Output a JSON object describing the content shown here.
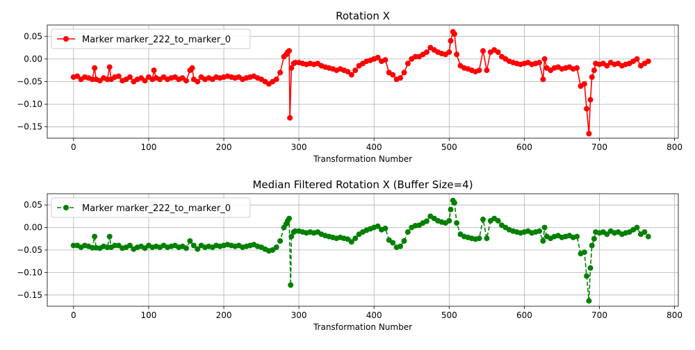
{
  "chart_data": [
    {
      "type": "line",
      "title": "Rotation X",
      "xlabel": "Transformation Number",
      "ylabel": "",
      "xlim": [
        -35,
        805
      ],
      "ylim": [
        -0.175,
        0.075
      ],
      "xticks": [
        0,
        100,
        200,
        300,
        400,
        500,
        600,
        700,
        800
      ],
      "yticks": [
        0.05,
        0.0,
        -0.05,
        -0.1,
        -0.15
      ],
      "ytick_labels": [
        "0.05",
        "0.00",
        "−0.05",
        "−0.10",
        "−0.15"
      ],
      "grid": true,
      "legend_position": "top-left",
      "series": [
        {
          "name": "Marker marker_222_to_marker_0",
          "color": "#ff0000",
          "line_style": "solid",
          "marker": "circle",
          "x": [
            0,
            5,
            10,
            15,
            20,
            25,
            28,
            30,
            35,
            40,
            45,
            48,
            50,
            55,
            60,
            65,
            70,
            75,
            80,
            85,
            90,
            95,
            100,
            105,
            107,
            110,
            115,
            120,
            125,
            130,
            135,
            140,
            145,
            150,
            155,
            158,
            160,
            165,
            170,
            175,
            180,
            185,
            190,
            195,
            200,
            205,
            210,
            215,
            220,
            225,
            230,
            235,
            240,
            245,
            250,
            255,
            260,
            265,
            270,
            275,
            280,
            283,
            285,
            287,
            288,
            290,
            293,
            295,
            300,
            305,
            310,
            315,
            320,
            325,
            330,
            335,
            340,
            345,
            350,
            355,
            360,
            365,
            370,
            375,
            380,
            385,
            390,
            395,
            400,
            405,
            410,
            415,
            420,
            425,
            430,
            435,
            440,
            445,
            450,
            455,
            460,
            465,
            470,
            475,
            480,
            485,
            490,
            495,
            500,
            502,
            505,
            507,
            510,
            515,
            520,
            525,
            530,
            535,
            540,
            545,
            550,
            555,
            560,
            565,
            570,
            575,
            580,
            585,
            590,
            595,
            600,
            605,
            610,
            615,
            620,
            625,
            627,
            630,
            635,
            640,
            645,
            650,
            655,
            660,
            665,
            670,
            675,
            680,
            683,
            686,
            688,
            690,
            693,
            695,
            700,
            705,
            710,
            715,
            720,
            725,
            730,
            735,
            740,
            745,
            750,
            755,
            760,
            765
          ],
          "y": [
            -0.04,
            -0.038,
            -0.045,
            -0.04,
            -0.042,
            -0.045,
            -0.02,
            -0.045,
            -0.048,
            -0.042,
            -0.045,
            -0.018,
            -0.045,
            -0.04,
            -0.038,
            -0.048,
            -0.045,
            -0.04,
            -0.05,
            -0.045,
            -0.042,
            -0.048,
            -0.04,
            -0.045,
            -0.025,
            -0.042,
            -0.045,
            -0.04,
            -0.045,
            -0.042,
            -0.04,
            -0.045,
            -0.042,
            -0.048,
            -0.025,
            -0.02,
            -0.045,
            -0.05,
            -0.04,
            -0.045,
            -0.042,
            -0.045,
            -0.04,
            -0.042,
            -0.04,
            -0.038,
            -0.04,
            -0.042,
            -0.04,
            -0.045,
            -0.042,
            -0.04,
            -0.038,
            -0.042,
            -0.045,
            -0.05,
            -0.055,
            -0.05,
            -0.045,
            -0.03,
            0.005,
            0.01,
            0.015,
            0.018,
            -0.13,
            -0.02,
            -0.01,
            -0.008,
            -0.008,
            -0.01,
            -0.012,
            -0.01,
            -0.012,
            -0.01,
            -0.015,
            -0.018,
            -0.02,
            -0.022,
            -0.025,
            -0.022,
            -0.025,
            -0.028,
            -0.035,
            -0.025,
            -0.015,
            -0.01,
            -0.005,
            -0.003,
            0.0,
            0.003,
            -0.005,
            -0.002,
            -0.03,
            -0.035,
            -0.045,
            -0.042,
            -0.03,
            -0.01,
            0.0,
            0.005,
            0.005,
            0.01,
            0.015,
            0.025,
            0.02,
            0.015,
            0.012,
            0.01,
            0.015,
            0.04,
            0.06,
            0.055,
            0.01,
            -0.015,
            -0.02,
            -0.022,
            -0.025,
            -0.028,
            -0.025,
            0.018,
            -0.025,
            0.015,
            0.02,
            0.015,
            0.005,
            0.0,
            -0.005,
            -0.008,
            -0.01,
            -0.012,
            -0.01,
            -0.008,
            -0.012,
            -0.01,
            -0.008,
            -0.045,
            0.0,
            -0.02,
            -0.025,
            -0.02,
            -0.018,
            -0.022,
            -0.02,
            -0.018,
            -0.022,
            -0.02,
            -0.06,
            -0.055,
            -0.11,
            -0.165,
            -0.09,
            -0.04,
            -0.025,
            -0.01,
            -0.012,
            -0.01,
            -0.015,
            -0.008,
            -0.012,
            -0.01,
            -0.015,
            -0.012,
            -0.01,
            -0.005,
            0.0,
            -0.015,
            -0.01,
            -0.005
          ]
        }
      ]
    },
    {
      "type": "line",
      "title": "Median Filtered Rotation X (Buffer Size=4)",
      "xlabel": "Transformation Number",
      "ylabel": "",
      "xlim": [
        -35,
        805
      ],
      "ylim": [
        -0.175,
        0.075
      ],
      "xticks": [
        0,
        100,
        200,
        300,
        400,
        500,
        600,
        700,
        800
      ],
      "yticks": [
        0.05,
        0.0,
        -0.05,
        -0.1,
        -0.15
      ],
      "ytick_labels": [
        "0.05",
        "0.00",
        "−0.05",
        "−0.10",
        "−0.15"
      ],
      "grid": true,
      "legend_position": "top-left",
      "series": [
        {
          "name": "Marker marker_222_to_marker_0",
          "color": "#008000",
          "line_style": "dashed",
          "marker": "circle",
          "x": [
            0,
            5,
            10,
            15,
            20,
            25,
            28,
            30,
            35,
            40,
            45,
            48,
            50,
            55,
            60,
            65,
            70,
            75,
            80,
            85,
            90,
            95,
            100,
            105,
            110,
            115,
            120,
            125,
            130,
            135,
            140,
            145,
            150,
            155,
            160,
            165,
            170,
            175,
            180,
            185,
            190,
            195,
            200,
            205,
            210,
            215,
            220,
            225,
            230,
            235,
            240,
            245,
            250,
            255,
            260,
            265,
            270,
            275,
            280,
            283,
            285,
            287,
            289,
            290,
            293,
            295,
            300,
            305,
            310,
            315,
            320,
            325,
            330,
            335,
            340,
            345,
            350,
            355,
            360,
            365,
            370,
            375,
            380,
            385,
            390,
            395,
            400,
            405,
            410,
            415,
            420,
            425,
            430,
            435,
            440,
            445,
            450,
            455,
            460,
            465,
            470,
            475,
            480,
            485,
            490,
            495,
            500,
            502,
            505,
            507,
            510,
            515,
            520,
            525,
            530,
            535,
            540,
            545,
            550,
            555,
            560,
            565,
            570,
            575,
            580,
            585,
            590,
            595,
            600,
            605,
            610,
            615,
            620,
            625,
            627,
            630,
            635,
            640,
            645,
            650,
            655,
            660,
            665,
            670,
            675,
            680,
            683,
            686,
            688,
            690,
            693,
            695,
            700,
            705,
            710,
            715,
            720,
            725,
            730,
            735,
            740,
            745,
            750,
            755,
            760,
            765
          ],
          "y": [
            -0.04,
            -0.04,
            -0.044,
            -0.04,
            -0.042,
            -0.045,
            -0.02,
            -0.045,
            -0.046,
            -0.042,
            -0.044,
            -0.02,
            -0.044,
            -0.04,
            -0.04,
            -0.046,
            -0.044,
            -0.04,
            -0.048,
            -0.044,
            -0.042,
            -0.046,
            -0.04,
            -0.044,
            -0.042,
            -0.044,
            -0.04,
            -0.044,
            -0.042,
            -0.04,
            -0.044,
            -0.042,
            -0.046,
            -0.03,
            -0.04,
            -0.048,
            -0.04,
            -0.044,
            -0.042,
            -0.044,
            -0.04,
            -0.042,
            -0.04,
            -0.038,
            -0.04,
            -0.042,
            -0.04,
            -0.044,
            -0.042,
            -0.04,
            -0.038,
            -0.042,
            -0.044,
            -0.048,
            -0.052,
            -0.05,
            -0.044,
            -0.03,
            0.0,
            0.008,
            0.015,
            0.02,
            -0.128,
            -0.02,
            -0.01,
            -0.008,
            -0.008,
            -0.01,
            -0.012,
            -0.01,
            -0.012,
            -0.01,
            -0.015,
            -0.018,
            -0.02,
            -0.022,
            -0.024,
            -0.022,
            -0.024,
            -0.026,
            -0.032,
            -0.024,
            -0.015,
            -0.01,
            -0.006,
            -0.003,
            0.0,
            0.003,
            -0.005,
            -0.002,
            -0.028,
            -0.034,
            -0.044,
            -0.042,
            -0.03,
            -0.01,
            0.0,
            0.004,
            0.005,
            0.01,
            0.014,
            0.025,
            0.02,
            0.015,
            0.012,
            0.01,
            0.015,
            0.04,
            0.06,
            0.055,
            0.01,
            -0.015,
            -0.02,
            -0.022,
            -0.024,
            -0.026,
            -0.024,
            0.018,
            -0.024,
            0.015,
            0.02,
            0.015,
            0.005,
            0.0,
            -0.005,
            -0.008,
            -0.01,
            -0.012,
            -0.01,
            -0.008,
            -0.012,
            -0.01,
            -0.008,
            -0.03,
            0.0,
            -0.02,
            -0.024,
            -0.02,
            -0.018,
            -0.022,
            -0.02,
            -0.018,
            -0.022,
            -0.02,
            -0.058,
            -0.055,
            -0.108,
            -0.163,
            -0.09,
            -0.04,
            -0.025,
            -0.01,
            -0.012,
            -0.01,
            -0.015,
            -0.008,
            -0.012,
            -0.01,
            -0.015,
            -0.012,
            -0.01,
            -0.005,
            0.0,
            -0.015,
            -0.01,
            -0.02
          ]
        }
      ]
    }
  ]
}
